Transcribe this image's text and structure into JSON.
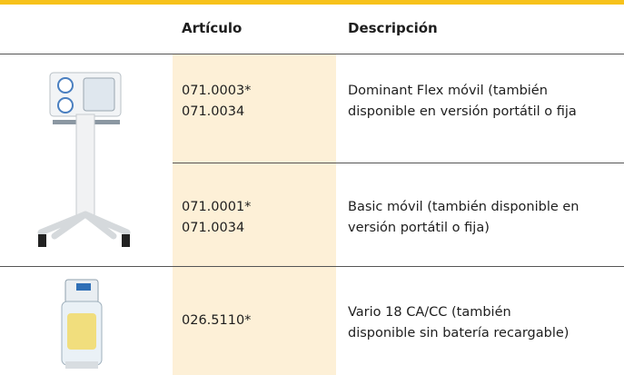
{
  "table": {
    "headers": [
      "Artículo",
      "Descripción"
    ],
    "rows": [
      {
        "codes": [
          "071.0003*",
          "071.0034"
        ],
        "description": [
          "Dominant Flex móvil (también",
          "disponible en versión portátil o fija"
        ]
      },
      {
        "codes": [
          "071.0001*",
          "071.0034"
        ],
        "description": [
          "Basic móvil (también disponible en",
          "versión portátil o fija)"
        ]
      },
      {
        "codes": [
          "026.5110*"
        ],
        "description": [
          "Vario 18 CA/CC (también",
          "disponible sin batería recargable)"
        ]
      }
    ]
  }
}
